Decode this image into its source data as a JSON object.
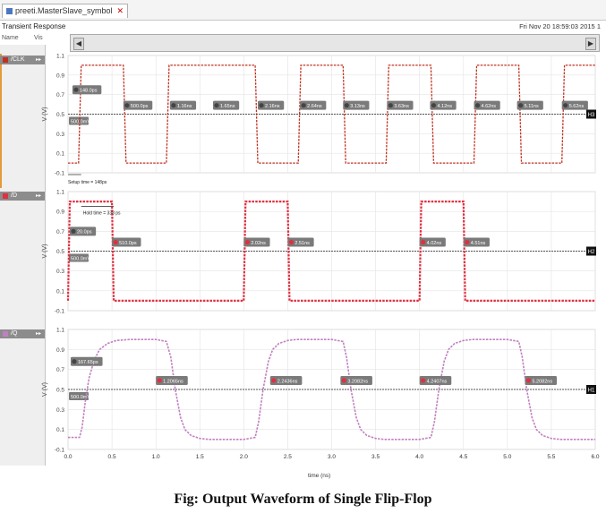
{
  "window": {
    "tab_label": "preeti.MasterSlave_symbol"
  },
  "header": {
    "title": "Transient Response",
    "date": "Fri Nov 20 18:59:03 2015  1"
  },
  "column_headers": {
    "name": "Name",
    "vis": "Vis"
  },
  "colors": {
    "clk": "#c03020",
    "d": "#e03040",
    "q": "#c080c0",
    "panel": "#8c8c8c"
  },
  "caption": "Fig: Output Waveform of Single Flip-Flop",
  "chart_data": [
    {
      "type": "line",
      "name": "/CLK",
      "ylabel": "V (V)",
      "xlabel": "time (ns)",
      "xlim": [
        0.0,
        6.0
      ],
      "ylim": [
        -0.1,
        1.1
      ],
      "yticks": [
        "-0.1",
        "0.1",
        "0.3",
        "0.5",
        "0.7",
        "0.9",
        "1.1"
      ],
      "x": [
        0.0,
        0.12,
        0.15,
        0.63,
        0.66,
        1.12,
        1.15,
        2.13,
        2.16,
        2.62,
        2.65,
        3.13,
        3.16,
        3.62,
        3.65,
        4.13,
        4.16,
        4.62,
        4.65,
        5.13,
        5.16,
        5.62,
        5.65,
        6.0
      ],
      "values": [
        0.0,
        0.0,
        1.0,
        1.0,
        0.0,
        0.0,
        1.0,
        1.0,
        0.0,
        0.0,
        1.0,
        1.0,
        0.0,
        0.0,
        1.0,
        1.0,
        0.0,
        0.0,
        1.0,
        1.0,
        0.0,
        0.0,
        1.0,
        1.0
      ],
      "threshold": {
        "value": 0.5,
        "label": "500.0mV",
        "marker": "H3"
      },
      "markers": [
        {
          "x": 0.05,
          "y": 0.75,
          "label": "148.0ps",
          "hot": false
        },
        {
          "x": 0.63,
          "y": 0.59,
          "label": "500.0ps",
          "hot": false
        },
        {
          "x": 1.16,
          "y": 0.59,
          "label": "1.16ns",
          "hot": false
        },
        {
          "x": 1.65,
          "y": 0.59,
          "label": "1.65ns",
          "hot": false
        },
        {
          "x": 2.16,
          "y": 0.59,
          "label": "2.16ns",
          "hot": false
        },
        {
          "x": 2.64,
          "y": 0.59,
          "label": "2.64ns",
          "hot": false
        },
        {
          "x": 3.13,
          "y": 0.59,
          "label": "3.13ns",
          "hot": false
        },
        {
          "x": 3.63,
          "y": 0.59,
          "label": "3.63ns",
          "hot": false
        },
        {
          "x": 4.12,
          "y": 0.59,
          "label": "4.12ns",
          "hot": false
        },
        {
          "x": 4.62,
          "y": 0.59,
          "label": "4.62ns",
          "hot": false
        },
        {
          "x": 5.11,
          "y": 0.59,
          "label": "5.11ns",
          "hot": false
        },
        {
          "x": 5.62,
          "y": 0.59,
          "label": "5.62ns",
          "hot": false
        }
      ],
      "annotation": "Setup time = 148ps"
    },
    {
      "type": "line",
      "name": "/D",
      "ylabel": "V (V)",
      "xlim": [
        0.0,
        6.0
      ],
      "ylim": [
        -0.1,
        1.1
      ],
      "yticks": [
        "-0.1",
        "0.1",
        "0.3",
        "0.5",
        "0.7",
        "0.9",
        "1.1"
      ],
      "x": [
        0.0,
        0.02,
        0.5,
        0.52,
        2.0,
        2.02,
        2.5,
        2.52,
        4.0,
        4.02,
        4.5,
        4.52,
        6.0
      ],
      "values": [
        0.0,
        1.0,
        1.0,
        0.0,
        0.0,
        1.0,
        1.0,
        0.0,
        0.0,
        1.0,
        1.0,
        0.0,
        0.0
      ],
      "threshold": {
        "value": 0.5,
        "label": "500.0mV",
        "marker": "H2"
      },
      "markers": [
        {
          "x": 0.02,
          "y": 0.7,
          "label": "20.0ps",
          "hot": false
        },
        {
          "x": 0.5,
          "y": 0.59,
          "label": "510.0ps",
          "hot": true
        },
        {
          "x": 2.0,
          "y": 0.59,
          "label": "2.02ns",
          "hot": true
        },
        {
          "x": 2.5,
          "y": 0.59,
          "label": "2.51ns",
          "hot": true
        },
        {
          "x": 4.0,
          "y": 0.59,
          "label": "4.02ns",
          "hot": true
        },
        {
          "x": 4.5,
          "y": 0.59,
          "label": "4.51ns",
          "hot": true
        }
      ],
      "annotation": "Hold time = 338 ps"
    },
    {
      "type": "line",
      "name": "/Q",
      "ylabel": "V (V)",
      "xlim": [
        0.0,
        6.0
      ],
      "ylim": [
        -0.1,
        1.1
      ],
      "yticks": [
        "-0.1",
        "0.1",
        "0.3",
        "0.5",
        "0.7",
        "0.9",
        "1.1"
      ],
      "x": [
        0.0,
        0.13,
        0.16,
        0.2,
        0.24,
        0.3,
        0.36,
        0.45,
        0.55,
        0.7,
        0.9,
        1.0,
        1.12,
        1.17,
        1.22,
        1.28,
        1.33,
        1.4,
        1.5,
        1.6,
        1.8,
        2.0,
        2.13,
        2.17,
        2.22,
        2.28,
        2.33,
        2.4,
        2.5,
        2.6,
        2.8,
        3.0,
        3.13,
        3.17,
        3.22,
        3.28,
        3.33,
        3.4,
        3.5,
        3.6,
        3.8,
        4.0,
        4.13,
        4.17,
        4.22,
        4.28,
        4.33,
        4.4,
        4.5,
        4.6,
        4.8,
        5.0,
        5.13,
        5.17,
        5.22,
        5.28,
        5.33,
        5.4,
        5.5,
        5.6,
        5.8,
        6.0
      ],
      "values": [
        0.02,
        0.02,
        0.12,
        0.4,
        0.62,
        0.8,
        0.9,
        0.96,
        0.99,
        1.0,
        1.0,
        1.0,
        0.98,
        0.82,
        0.5,
        0.22,
        0.1,
        0.04,
        0.01,
        0.0,
        0.0,
        0.0,
        0.02,
        0.18,
        0.5,
        0.78,
        0.9,
        0.96,
        0.99,
        1.0,
        1.0,
        1.0,
        0.98,
        0.82,
        0.5,
        0.22,
        0.1,
        0.04,
        0.01,
        0.0,
        0.0,
        0.0,
        0.02,
        0.18,
        0.5,
        0.78,
        0.9,
        0.96,
        0.99,
        1.0,
        1.0,
        1.0,
        0.98,
        0.82,
        0.5,
        0.22,
        0.1,
        0.04,
        0.01,
        0.0,
        0.0,
        0.0
      ],
      "threshold": {
        "value": 0.5,
        "label": "500.0mV",
        "marker": "H1"
      },
      "markers": [
        {
          "x": 0.03,
          "y": 0.78,
          "label": "167.65ps",
          "hot": false
        },
        {
          "x": 1.0,
          "y": 0.59,
          "label": "1.2065ns",
          "hot": true
        },
        {
          "x": 2.3,
          "y": 0.59,
          "label": "2.2436ns",
          "hot": true
        },
        {
          "x": 3.1,
          "y": 0.59,
          "label": "3.2082ns",
          "hot": true
        },
        {
          "x": 4.0,
          "y": 0.59,
          "label": "4.2407ns",
          "hot": true
        },
        {
          "x": 5.2,
          "y": 0.59,
          "label": "5.2082ns",
          "hot": true
        }
      ]
    }
  ],
  "x_axis": {
    "ticks": [
      "0.0",
      "0.5",
      "1.0",
      "1.5",
      "2.0",
      "2.5",
      "3.0",
      "3.5",
      "4.0",
      "4.5",
      "5.0",
      "5.5",
      "6.0"
    ],
    "title": "time (ns)"
  }
}
